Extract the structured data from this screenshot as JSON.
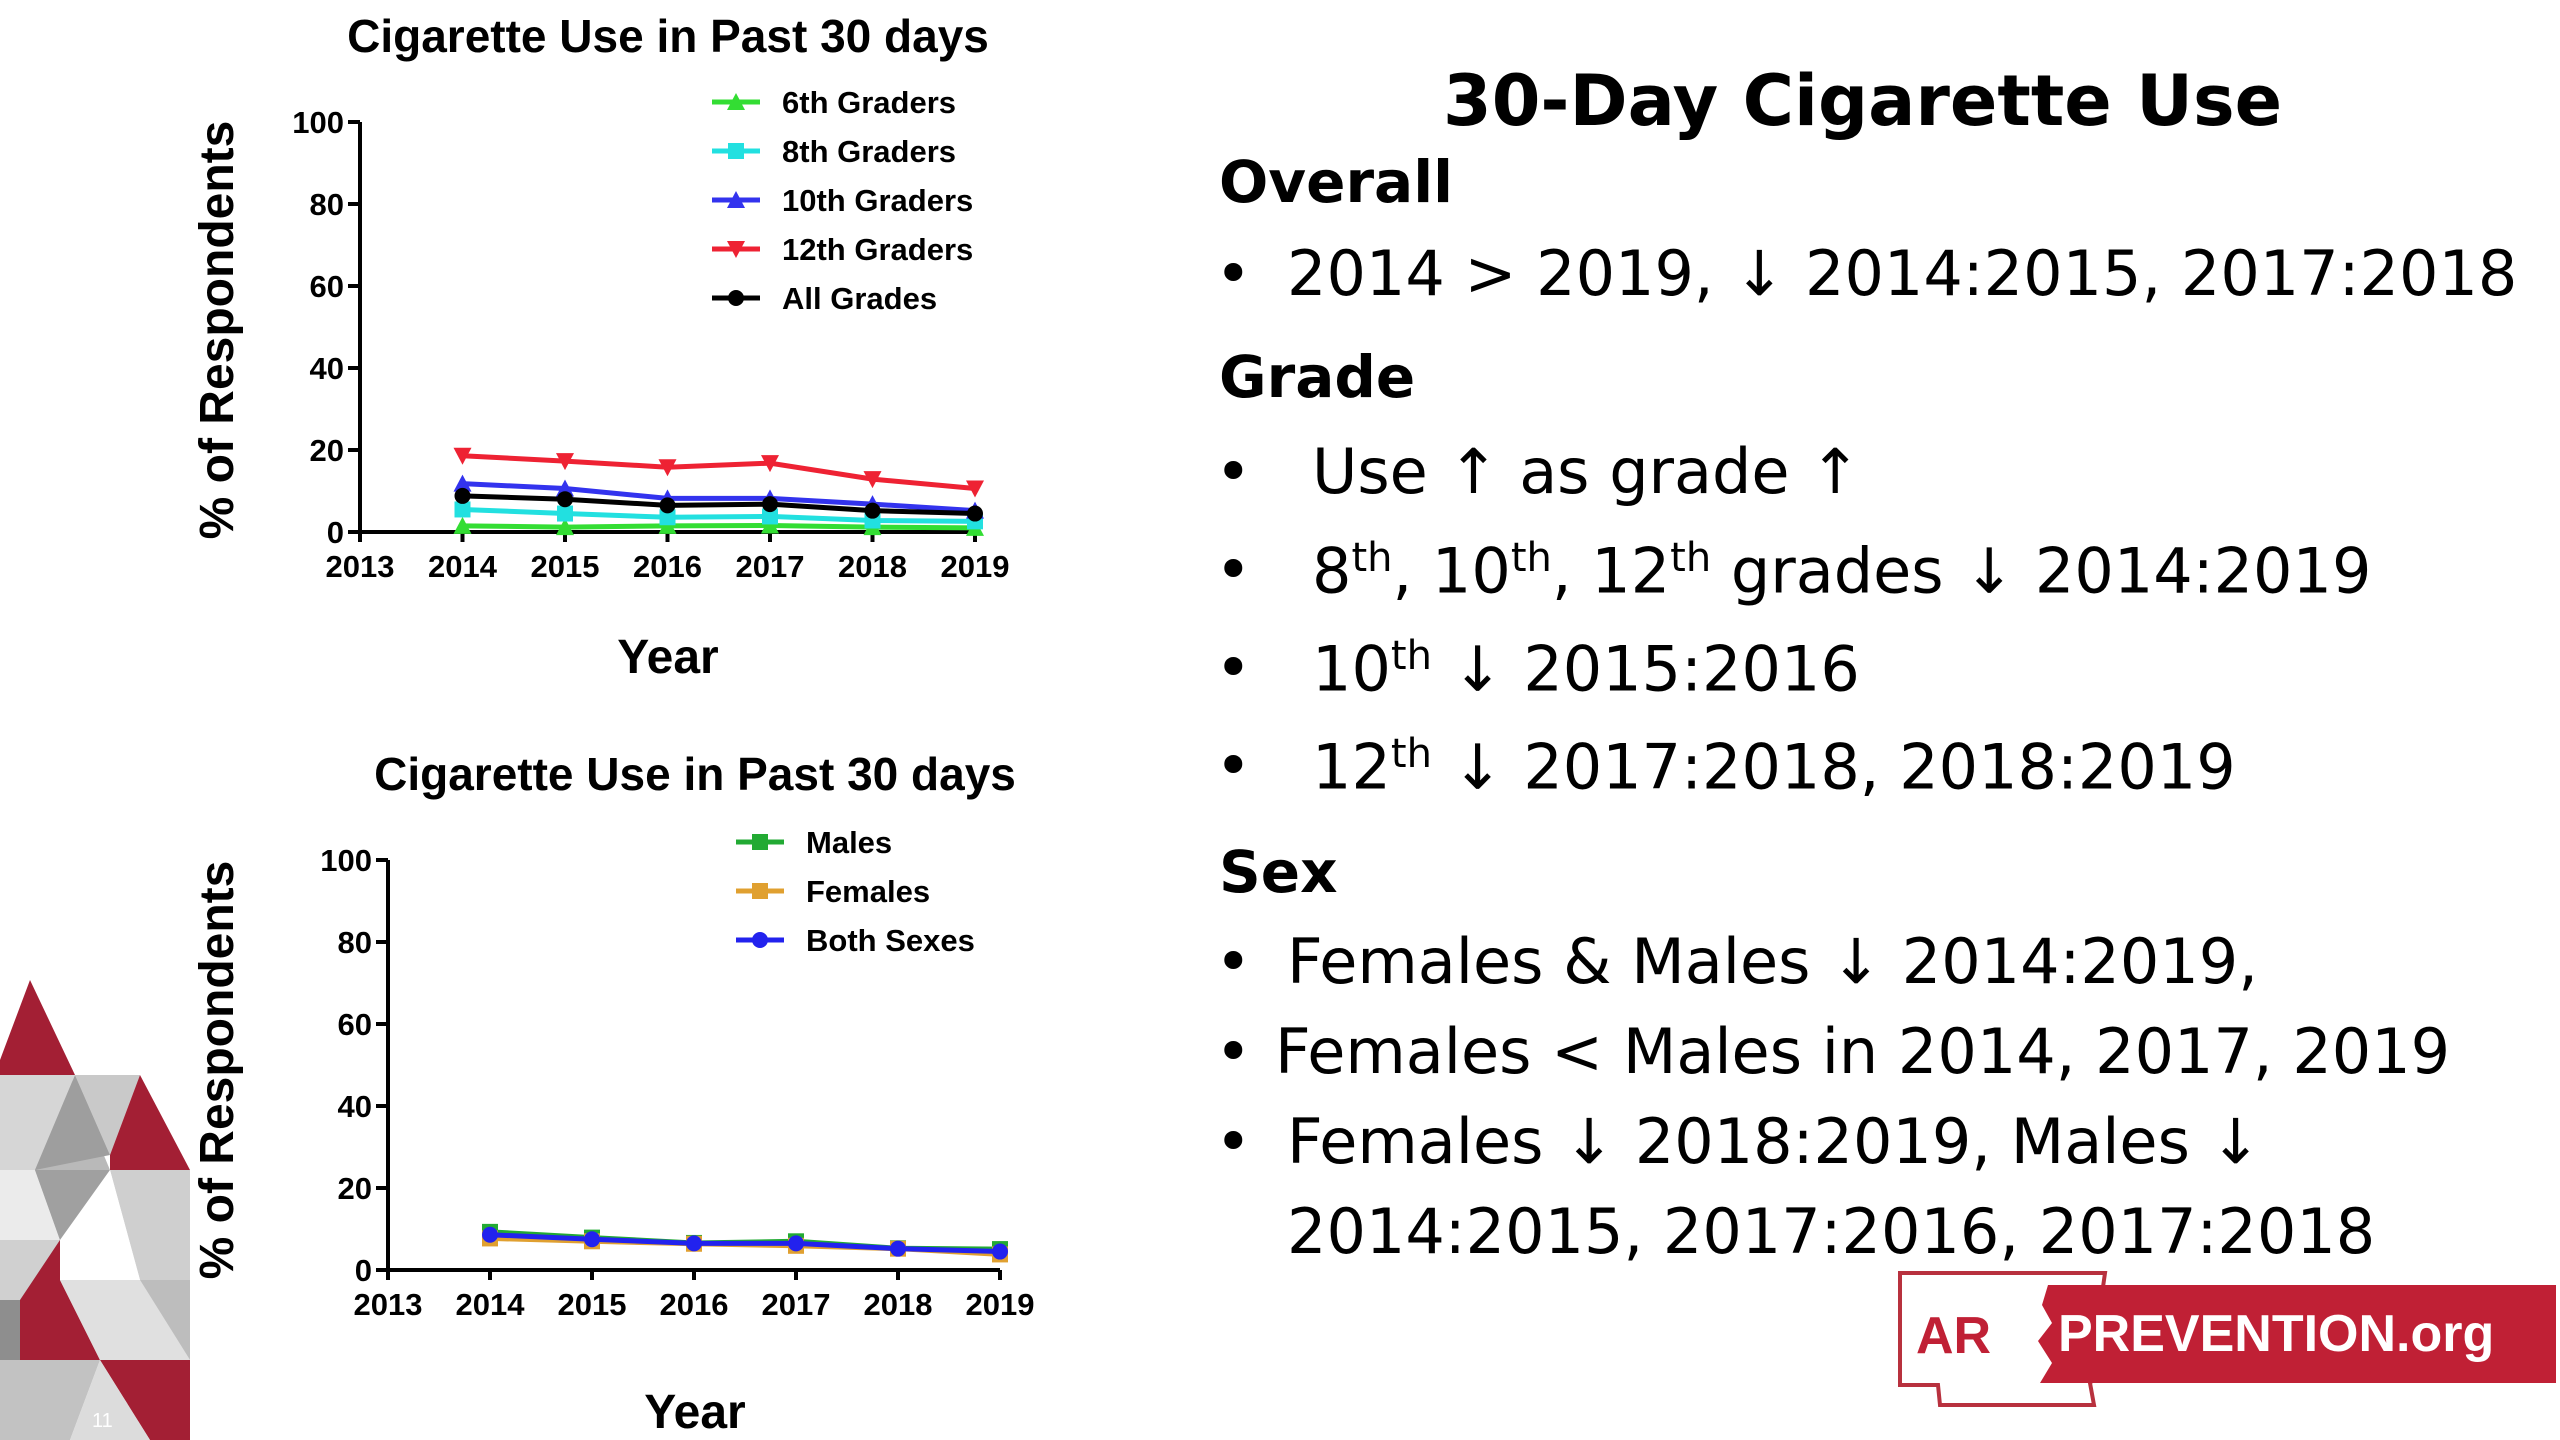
{
  "chart_data": [
    {
      "type": "line",
      "title": "Cigarette Use in Past 30 days",
      "xlabel": "Year",
      "ylabel": "% of Respondents",
      "xlim": [
        2013,
        2019
      ],
      "ylim": [
        0,
        100
      ],
      "xticks": [
        2013,
        2014,
        2015,
        2016,
        2017,
        2018,
        2019
      ],
      "yticks": [
        0,
        20,
        40,
        60,
        80,
        100
      ],
      "x": [
        2014,
        2015,
        2016,
        2017,
        2018,
        2019
      ],
      "legend_position": "top-right",
      "grid": false,
      "series": [
        {
          "name": "6th Graders",
          "color": "#33dd33",
          "marker": "triangle-up",
          "values": [
            1.5,
            1.2,
            1.5,
            1.6,
            1.2,
            1.0
          ]
        },
        {
          "name": "8th Graders",
          "color": "#22e0e0",
          "marker": "square",
          "values": [
            5.5,
            4.5,
            3.6,
            3.8,
            2.8,
            2.6
          ]
        },
        {
          "name": "10th Graders",
          "color": "#3333ee",
          "marker": "triangle-up",
          "values": [
            11.8,
            10.6,
            8.2,
            8.2,
            6.8,
            5.2
          ]
        },
        {
          "name": "12th Graders",
          "color": "#ee2233",
          "marker": "triangle-down",
          "values": [
            18.6,
            17.3,
            15.8,
            16.8,
            12.9,
            10.6
          ]
        },
        {
          "name": "All Grades",
          "color": "#000000",
          "marker": "circle",
          "values": [
            8.8,
            8.0,
            6.5,
            6.8,
            5.2,
            4.5
          ]
        }
      ]
    },
    {
      "type": "line",
      "title": "Cigarette Use in Past 30 days",
      "xlabel": "Year",
      "ylabel": "% of Respondents",
      "xlim": [
        2013,
        2019
      ],
      "ylim": [
        0,
        100
      ],
      "xticks": [
        2013,
        2014,
        2015,
        2016,
        2017,
        2018,
        2019
      ],
      "yticks": [
        0,
        20,
        40,
        60,
        80,
        100
      ],
      "x": [
        2014,
        2015,
        2016,
        2017,
        2018,
        2019
      ],
      "legend_position": "top-right",
      "grid": false,
      "series": [
        {
          "name": "Males",
          "color": "#22aa33",
          "marker": "square",
          "values": [
            9.3,
            7.9,
            6.6,
            7.0,
            5.3,
            5.1
          ]
        },
        {
          "name": "Females",
          "color": "#e0a030",
          "marker": "square",
          "values": [
            7.7,
            7.0,
            6.4,
            5.9,
            5.2,
            3.8
          ]
        },
        {
          "name": "Both Sexes",
          "color": "#2222ee",
          "marker": "circle",
          "values": [
            8.6,
            7.5,
            6.5,
            6.5,
            5.2,
            4.5
          ]
        }
      ]
    }
  ],
  "slide": {
    "title": "30-Day Cigarette Use",
    "page_number": "11",
    "colors": {
      "accent": "#a31f34",
      "logo_red": "#c02035"
    }
  },
  "sections": [
    {
      "heading": "Overall",
      "bullets": [
        {
          "dot": "•",
          "text": "2014 > 2019, ↓ 2014:2015, 2017:2018"
        }
      ]
    },
    {
      "heading": "Grade",
      "bullets": [
        {
          "dot": "•",
          "text": "Use ↑ as grade ↑"
        },
        {
          "dot": "•",
          "parts": [
            "8",
            "th",
            ", 10",
            "th",
            ", 12",
            "th",
            " grades ↓ 2014:2019"
          ]
        },
        {
          "dot": "•",
          "parts": [
            "10",
            "th",
            " ↓ 2015:2016"
          ]
        },
        {
          "dot": "•",
          "parts": [
            "12",
            "th",
            " ↓ 2017:2018, 2018:2019"
          ]
        }
      ]
    },
    {
      "heading": "Sex",
      "bullets": [
        {
          "dot": "•",
          "text": "Females & Males ↓ 2014:2019,"
        },
        {
          "dot": "•",
          "text": "Females < Males in 2014, 2017, 2019"
        },
        {
          "dot": "•",
          "text": "Females ↓ 2018:2019, Males ↓"
        },
        {
          "text": "2014:2015, 2017:2016, 2017:2018"
        }
      ]
    }
  ],
  "logo": {
    "part1": "AR",
    "part2": "PREVENTION.org"
  }
}
